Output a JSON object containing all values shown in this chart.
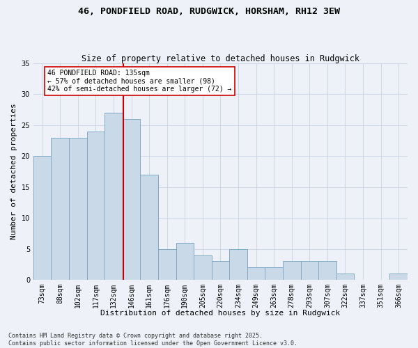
{
  "title": "46, PONDFIELD ROAD, RUDGWICK, HORSHAM, RH12 3EW",
  "subtitle": "Size of property relative to detached houses in Rudgwick",
  "xlabel": "Distribution of detached houses by size in Rudgwick",
  "ylabel": "Number of detached properties",
  "categories": [
    "73sqm",
    "88sqm",
    "102sqm",
    "117sqm",
    "132sqm",
    "146sqm",
    "161sqm",
    "176sqm",
    "190sqm",
    "205sqm",
    "220sqm",
    "234sqm",
    "249sqm",
    "263sqm",
    "278sqm",
    "293sqm",
    "307sqm",
    "322sqm",
    "337sqm",
    "351sqm",
    "366sqm"
  ],
  "values": [
    20,
    23,
    23,
    24,
    27,
    26,
    17,
    5,
    6,
    4,
    3,
    5,
    2,
    2,
    3,
    3,
    3,
    1,
    0,
    0,
    1
  ],
  "bar_color": "#c9d9e8",
  "bar_edge_color": "#7eaac8",
  "grid_color": "#d0d8e8",
  "annotation_text": "46 PONDFIELD ROAD: 135sqm\n← 57% of detached houses are smaller (98)\n42% of semi-detached houses are larger (72) →",
  "annotation_box_color": "#ffffff",
  "annotation_box_edge": "#cc0000",
  "vline_x": 4.55,
  "vline_color": "#cc0000",
  "background_color": "#eef2f8",
  "ylim": [
    0,
    35
  ],
  "yticks": [
    0,
    5,
    10,
    15,
    20,
    25,
    30,
    35
  ],
  "footer": "Contains HM Land Registry data © Crown copyright and database right 2025.\nContains public sector information licensed under the Open Government Licence v3.0.",
  "title_fontsize": 9.5,
  "subtitle_fontsize": 8.5,
  "ylabel_fontsize": 8,
  "xlabel_fontsize": 8,
  "tick_fontsize": 7,
  "annotation_fontsize": 7,
  "footer_fontsize": 6
}
